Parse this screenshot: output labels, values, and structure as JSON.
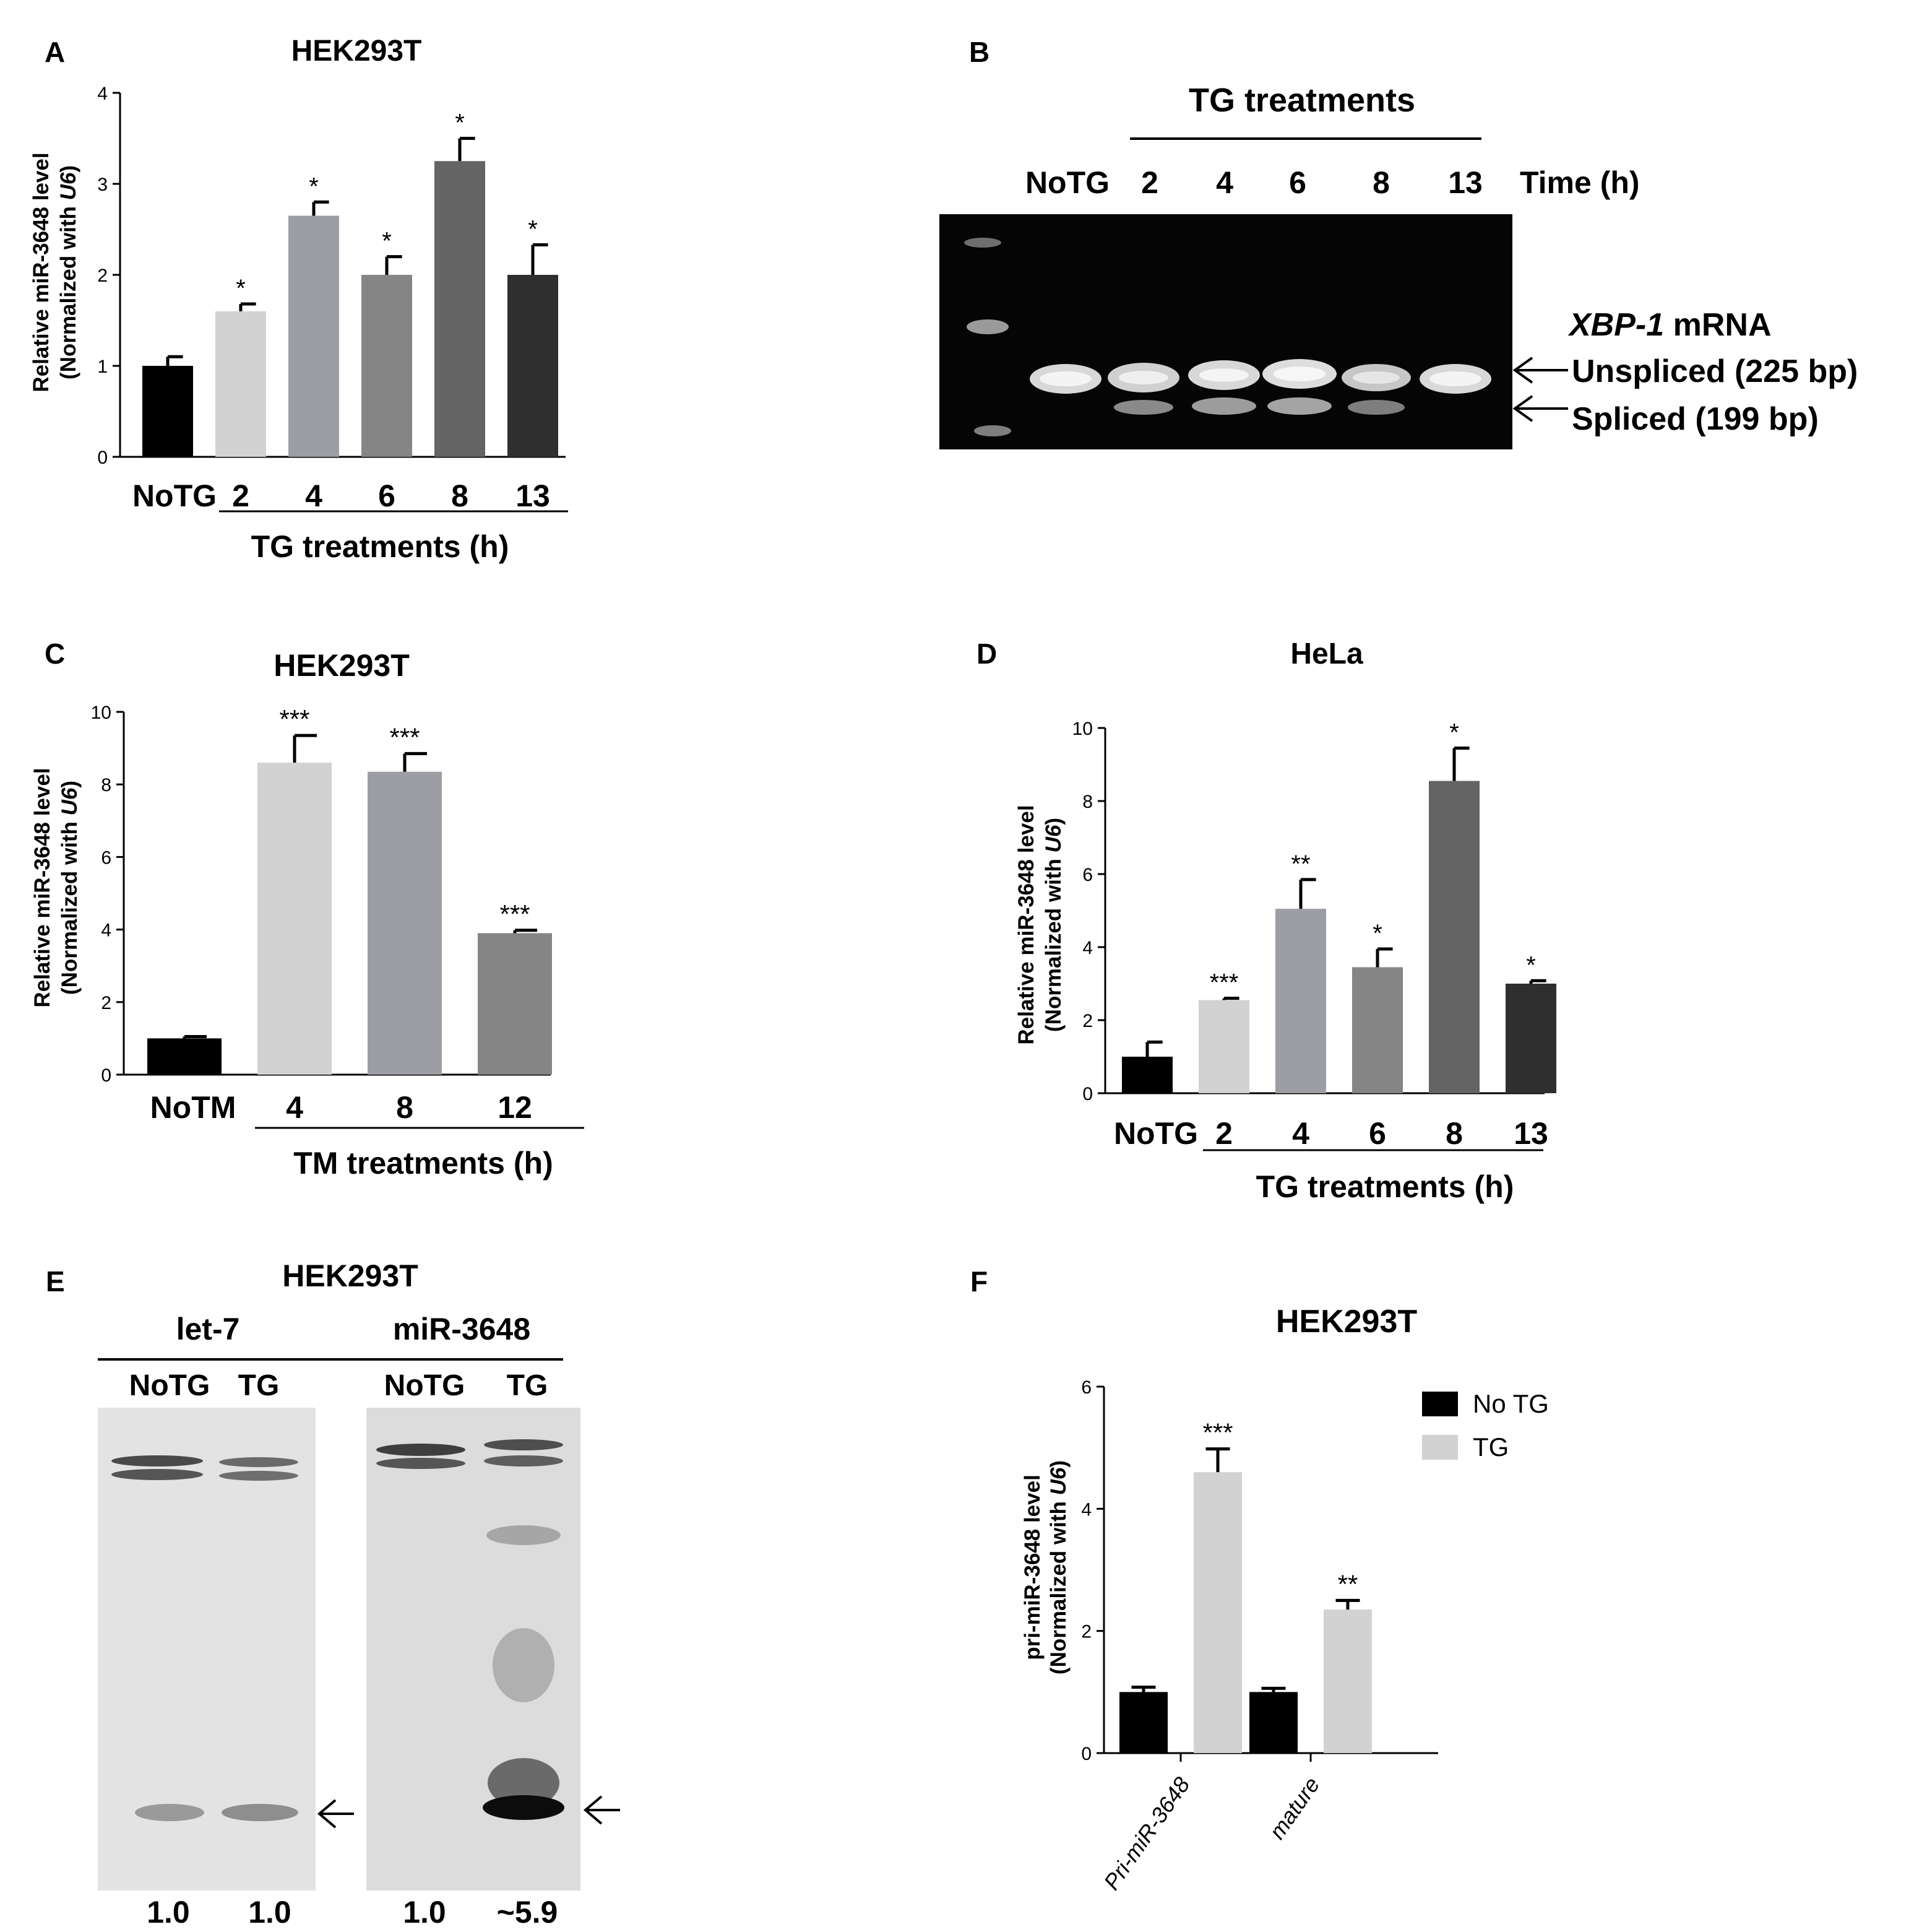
{
  "panels": {
    "A": {
      "letter": "A",
      "title": "HEK293T",
      "ylabel_line1": "Relative miR-3648 level",
      "ylabel_line2_pre": "(Normalized with ",
      "ylabel_line2_ital": "U6",
      "ylabel_line2_post": ")",
      "group_label": "TG treatments (h)",
      "chart_data": {
        "type": "bar",
        "categories": [
          "NoTG",
          "2",
          "4",
          "6",
          "8",
          "13"
        ],
        "values": [
          1.0,
          1.6,
          2.65,
          2.0,
          3.25,
          2.0
        ],
        "errors": [
          0.1,
          0.08,
          0.15,
          0.2,
          0.25,
          0.33
        ],
        "significance": [
          "",
          "*",
          "*",
          "*",
          "*",
          "*"
        ],
        "colors": [
          "#000000",
          "#d2d2d2",
          "#9d9ea3",
          "#858585",
          "#646464",
          "#2f2f2f"
        ],
        "ylim": [
          0,
          4
        ],
        "yticks": [
          "0",
          "1",
          "2",
          "3",
          "4"
        ]
      }
    },
    "B": {
      "letter": "B",
      "group_label": "TG treatments",
      "lanes": [
        "NoTG",
        "2",
        "4",
        "6",
        "8",
        "13"
      ],
      "time_label": "Time (h)",
      "gene_italic": "XBP-1",
      "gene_suffix": " mRNA",
      "band1": "Unspliced (225 bp)",
      "band2": "Spliced (199 bp)"
    },
    "C": {
      "letter": "C",
      "title": "HEK293T",
      "ylabel_line1": "Relative miR-3648 level",
      "ylabel_line2_pre": "(Normalized with ",
      "ylabel_line2_ital": "U6",
      "ylabel_line2_post": ")",
      "group_label": "TM treatments (h)",
      "chart_data": {
        "type": "bar",
        "categories": [
          "NoTM",
          "4",
          "8",
          "12"
        ],
        "values": [
          1.0,
          8.6,
          8.35,
          3.9
        ],
        "errors": [
          0.05,
          0.75,
          0.5,
          0.08
        ],
        "significance": [
          "",
          "***",
          "***",
          "***"
        ],
        "colors": [
          "#000000",
          "#d2d2d2",
          "#9d9ea3",
          "#858585"
        ],
        "ylim": [
          0,
          10
        ],
        "yticks": [
          "0",
          "2",
          "4",
          "6",
          "8",
          "10"
        ]
      }
    },
    "D": {
      "letter": "D",
      "title": "HeLa",
      "ylabel_line1": "Relative miR-3648 level",
      "ylabel_line2_pre": "(Normalized with ",
      "ylabel_line2_ital": "U6",
      "ylabel_line2_post": ")",
      "group_label": "TG treatments (h)",
      "chart_data": {
        "type": "bar",
        "categories": [
          "NoTG",
          "2",
          "4",
          "6",
          "8",
          "13"
        ],
        "values": [
          1.0,
          2.55,
          5.05,
          3.45,
          8.55,
          3.0
        ],
        "errors": [
          0.4,
          0.05,
          0.8,
          0.5,
          0.9,
          0.08
        ],
        "significance": [
          "",
          "***",
          "**",
          "*",
          "*",
          "*"
        ],
        "colors": [
          "#000000",
          "#d2d2d2",
          "#9d9ea3",
          "#858585",
          "#646464",
          "#2f2f2f"
        ],
        "ylim": [
          0,
          10
        ],
        "yticks": [
          "0",
          "2",
          "4",
          "6",
          "8",
          "10"
        ]
      }
    },
    "E": {
      "letter": "E",
      "title": "HEK293T",
      "probe1": "let-7",
      "probe2": "miR-3648",
      "lanes1": [
        "NoTG",
        "TG"
      ],
      "lanes2": [
        "NoTG",
        "TG"
      ],
      "quant1": [
        "1.0",
        "1.0"
      ],
      "quant2": [
        "1.0",
        "~5.9"
      ]
    },
    "F": {
      "letter": "F",
      "title": "HEK293T",
      "ylabel_line1": "pri-miR-3648 level",
      "ylabel_line2_pre": "(Normalized with ",
      "ylabel_line2_ital": "U6",
      "ylabel_line2_post": ")",
      "legend": [
        {
          "label": "No TG",
          "color": "#000000"
        },
        {
          "label": "TG",
          "color": "#d2d2d2"
        }
      ],
      "chart_data": {
        "type": "bar",
        "categories": [
          "Pri-miR-3648",
          "mature"
        ],
        "series": [
          {
            "name": "No TG",
            "values": [
              1.0,
              1.0
            ],
            "errors": [
              0.08,
              0.06
            ],
            "significance": [
              "",
              ""
            ]
          },
          {
            "name": "TG",
            "values": [
              4.6,
              2.35
            ],
            "errors": [
              0.38,
              0.15
            ],
            "significance": [
              "***",
              "**"
            ]
          }
        ],
        "ylim": [
          0,
          6
        ],
        "yticks": [
          "0",
          "2",
          "4",
          "6"
        ]
      }
    }
  }
}
